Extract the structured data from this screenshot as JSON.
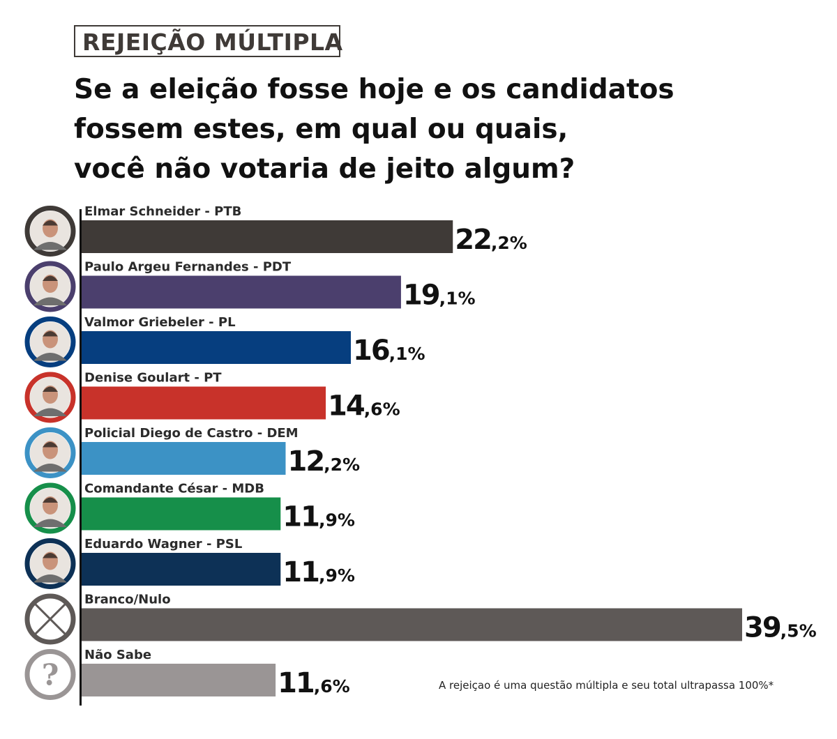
{
  "header": {
    "tag": "REJEIÇÃO MÚLTIPLA",
    "question_lines": [
      "Se a eleição fosse hoje e os candidatos",
      "fossem estes, em qual ou quais,",
      "você não votaria de jeito algum?"
    ]
  },
  "chart_data": {
    "type": "bar",
    "orientation": "horizontal",
    "categories": [
      "Elmar Schneider - PTB",
      "Paulo Argeu Fernandes - PDT",
      "Valmor Griebeler - PL",
      "Denise Goulart - PT",
      "Policial Diego de Castro - DEM",
      "Comandante César - MDB",
      "Eduardo Wagner - PSL",
      "Branco/Nulo",
      "Não Sabe"
    ],
    "values": [
      22.2,
      19.1,
      16.1,
      14.6,
      12.2,
      11.9,
      11.9,
      39.5,
      11.6
    ],
    "value_labels": [
      [
        "22",
        ",2%"
      ],
      [
        "19",
        ",1%"
      ],
      [
        "16",
        ",1%"
      ],
      [
        "14",
        ",6%"
      ],
      [
        "12",
        ",2%"
      ],
      [
        "11",
        ",9%"
      ],
      [
        "11",
        ",9%"
      ],
      [
        "39",
        ",5%"
      ],
      [
        "11",
        ",6%"
      ]
    ],
    "colors": [
      "#3f3a37",
      "#4b3f6d",
      "#063e7f",
      "#c8322a",
      "#3c92c5",
      "#168f4a",
      "#0d3156",
      "#5e5957",
      "#9a9595"
    ],
    "icons": [
      "candidate-photo",
      "candidate-photo",
      "candidate-photo",
      "candidate-photo",
      "candidate-photo",
      "candidate-photo",
      "candidate-photo",
      "x-mark-icon",
      "question-mark-icon"
    ],
    "question_glyph": "?",
    "xlim": [
      0,
      40
    ],
    "grid": false,
    "legend": "none"
  },
  "footnote": "A rejeiçao é uma questão múltipla e seu total ultrapassa 100%*"
}
